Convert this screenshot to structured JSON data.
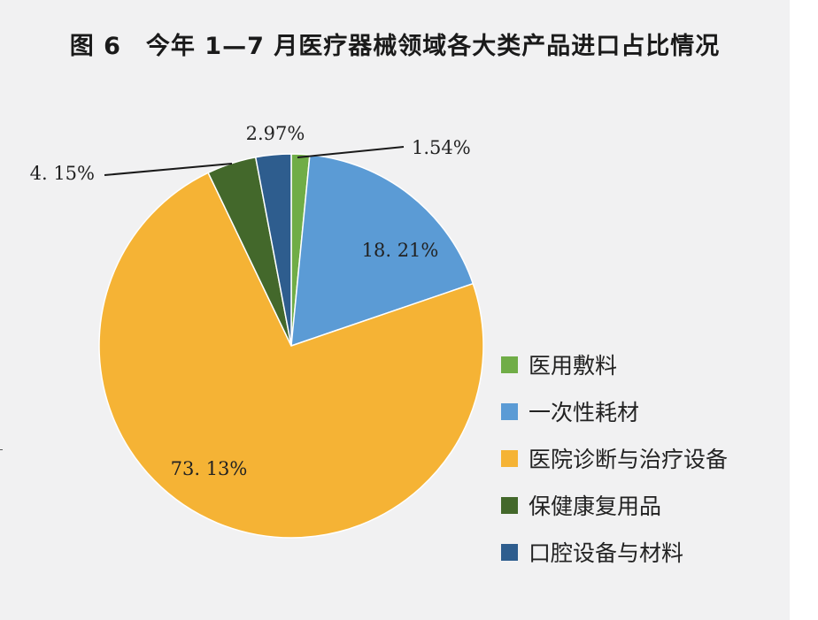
{
  "title": "图 6　今年 1—7 月医疗器械领域各大类产品进口占比情况",
  "chart_data": {
    "type": "pie",
    "title": "图 6　今年 1—7 月医疗器械领域各大类产品进口占比情况",
    "slices": [
      {
        "name": "医用敷料",
        "value": 1.54,
        "label": "1.54%",
        "color": "#70ad47"
      },
      {
        "name": "一次性耗材",
        "value": 18.21,
        "label": "18. 21%",
        "color": "#5b9bd5"
      },
      {
        "name": "医院诊断与治疗设备",
        "value": 73.13,
        "label": "73. 13%",
        "color": "#f5b335"
      },
      {
        "name": "保健康复用品",
        "value": 4.15,
        "label": "4. 15%",
        "color": "#43682b"
      },
      {
        "name": "口腔设备与材料",
        "value": 2.97,
        "label": "2.97%",
        "color": "#2e5d8e"
      }
    ],
    "legend_position": "right",
    "start_angle": "top, clockwise"
  }
}
